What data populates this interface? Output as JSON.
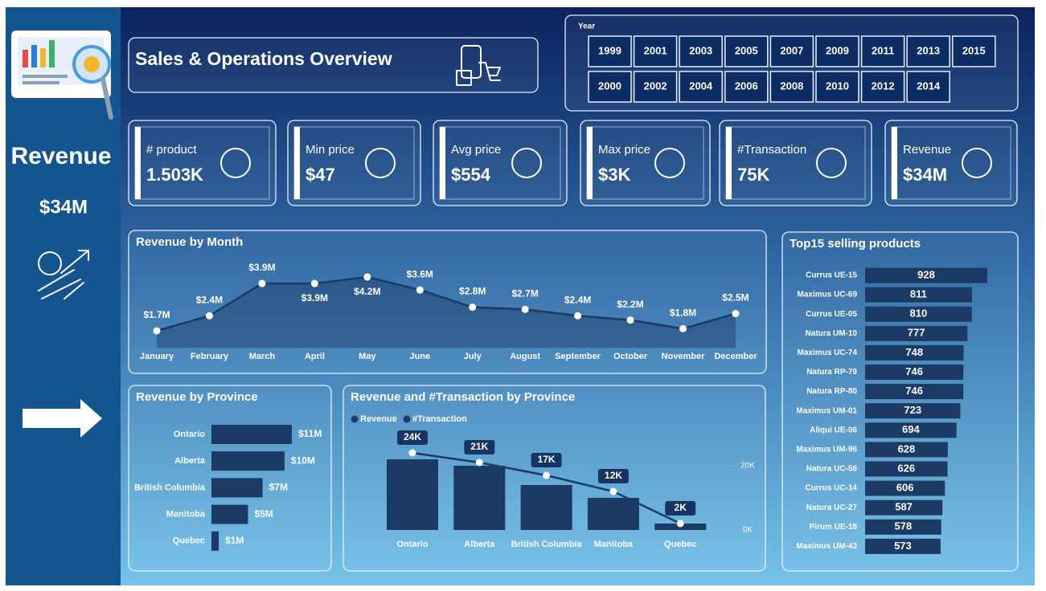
{
  "sidebar": {
    "title": "Revenue",
    "value": "$34M"
  },
  "header": {
    "title": "Sales & Operations Overview"
  },
  "slicer": {
    "label": "Year",
    "rows": [
      [
        "1999",
        "2001",
        "2003",
        "2005",
        "2007",
        "2009",
        "2011",
        "2013",
        "2015"
      ],
      [
        "2000",
        "2002",
        "2004",
        "2006",
        "2008",
        "2010",
        "2012",
        "2014"
      ]
    ]
  },
  "kpis": [
    {
      "label": "# product",
      "value": "1.503K"
    },
    {
      "label": "Min price",
      "value": "$47"
    },
    {
      "label": "Avg price",
      "value": "$554"
    },
    {
      "label": "Max price",
      "value": "$3K"
    },
    {
      "label": "#Transaction",
      "value": "75K"
    },
    {
      "label": "Revenue",
      "value": "$34M"
    }
  ],
  "chart_data": [
    {
      "type": "line",
      "title": "Revenue by Month",
      "categories": [
        "January",
        "February",
        "March",
        "April",
        "May",
        "June",
        "July",
        "August",
        "September",
        "October",
        "November",
        "December"
      ],
      "values": [
        1.7,
        2.4,
        3.9,
        3.9,
        4.2,
        3.6,
        2.8,
        2.7,
        2.4,
        2.2,
        1.8,
        2.5
      ],
      "value_labels": [
        "$1.7M",
        "$2.4M",
        "$3.9M",
        "$3.9M",
        "$4.2M",
        "$3.6M",
        "$2.8M",
        "$2.7M",
        "$2.4M",
        "$2.2M",
        "$1.8M",
        "$2.5M"
      ],
      "color": "#1b3a66"
    },
    {
      "type": "hbar",
      "title": "Revenue by Province",
      "categories": [
        "Ontario",
        "Alberta",
        "British Columbia",
        "Manitoba",
        "Quebec"
      ],
      "values": [
        11,
        10,
        7,
        5,
        1
      ],
      "value_labels": [
        "$11M",
        "$10M",
        "$7M",
        "$5M",
        "$1M"
      ],
      "color": "#1b3a66"
    },
    {
      "type": "combo",
      "title": "Revenue and #Transaction by Province",
      "categories": [
        "Ontario",
        "Alberta",
        "British Columbia",
        "Manitoba",
        "Quebec"
      ],
      "series": [
        {
          "name": "Revenue",
          "color": "#1b3a66",
          "values": [
            11,
            10,
            7,
            5,
            1
          ]
        },
        {
          "name": "#Transaction",
          "color": "#1b3a66",
          "axis": "y2",
          "values": [
            24000,
            21000,
            17000,
            12000,
            2000
          ],
          "value_labels": [
            "24K",
            "21K",
            "17K",
            "12K",
            "2K"
          ]
        }
      ],
      "ylim": [
        0,
        15
      ],
      "y2lim": [
        0,
        30000
      ],
      "y2ticks": [
        {
          "value": 0,
          "label": "0K"
        },
        {
          "value": 20000,
          "label": "20K"
        }
      ],
      "legend": "top-left"
    },
    {
      "type": "hbar-inside",
      "title": "Top15 selling products",
      "categories": [
        "Currus UE-15",
        "Maximus UC-69",
        "Currus UE-05",
        "Natura UM-10",
        "Maximus UC-74",
        "Natura RP-79",
        "Natura RP-80",
        "Maximus UM-01",
        "Aliqui UE-06",
        "Maximus UM-96",
        "Natura UC-56",
        "Currus UC-14",
        "Natura UC-27",
        "Pirum UE-18",
        "Maximus UM-43"
      ],
      "values": [
        928,
        811,
        810,
        777,
        748,
        746,
        746,
        723,
        694,
        628,
        626,
        606,
        587,
        578,
        573
      ],
      "color": "#1b3a66"
    }
  ]
}
